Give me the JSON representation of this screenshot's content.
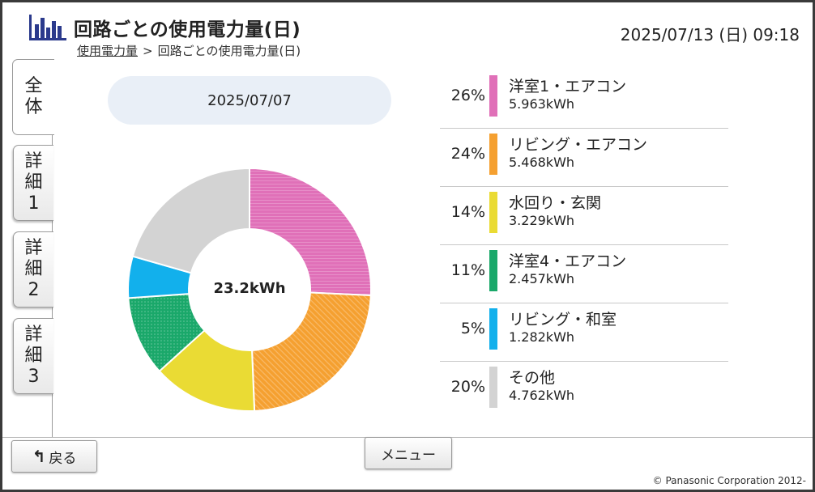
{
  "header": {
    "title": "回路ごとの使用電力量(日)",
    "breadcrumb": {
      "link": "使用電力量",
      "separator": ">",
      "current": "回路ごとの使用電力量(日)"
    },
    "datetime": "2025/07/13 (日) 09:18"
  },
  "tabs": [
    {
      "label": "全体",
      "active": true
    },
    {
      "label": "詳細1",
      "active": false
    },
    {
      "label": "詳細2",
      "active": false
    },
    {
      "label": "詳細3",
      "active": false
    }
  ],
  "date_selector": {
    "value": "2025/07/07"
  },
  "chart_data": {
    "type": "pie",
    "style": "donut",
    "center_label": "23.2kWh",
    "slices": [
      {
        "name": "洋室1・エアコン",
        "percent": "26%",
        "value": 5.963,
        "value_label": "5.963kWh",
        "color": "#e070b8"
      },
      {
        "name": "リビング・エアコン",
        "percent": "24%",
        "value": 5.468,
        "value_label": "5.468kWh",
        "color": "#f5a030"
      },
      {
        "name": "水回り・玄関",
        "percent": "14%",
        "value": 3.229,
        "value_label": "3.229kWh",
        "color": "#eadb34"
      },
      {
        "name": "洋室4・エアコン",
        "percent": "11%",
        "value": 2.457,
        "value_label": "2.457kWh",
        "color": "#1aa86a"
      },
      {
        "name": "リビング・和室",
        "percent": "5%",
        "value": 1.282,
        "value_label": "1.282kWh",
        "color": "#12b0ec"
      },
      {
        "name": "その他",
        "percent": "20%",
        "value": 4.762,
        "value_label": "4.762kWh",
        "color": "#d3d3d3"
      }
    ]
  },
  "footer": {
    "back_label": "戻る",
    "menu_label": "メニュー",
    "copyright": "© Panasonic Corporation 2012-"
  }
}
